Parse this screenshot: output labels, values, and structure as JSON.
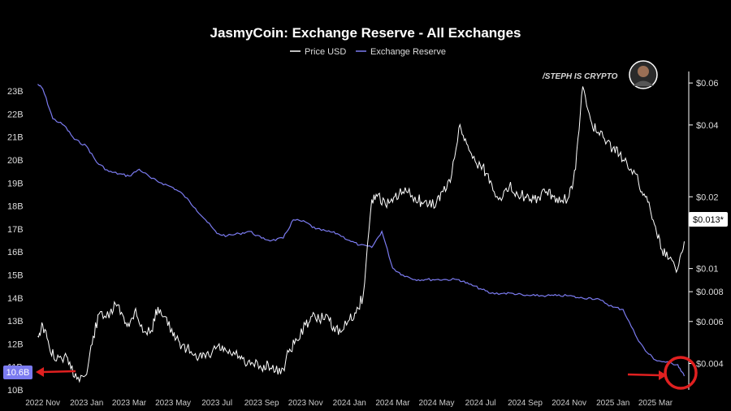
{
  "chart_data": {
    "type": "line",
    "title": "JasmyCoin: Exchange Reserve - All Exchanges",
    "legend": {
      "placement": "top-center",
      "items": [
        {
          "name": "Price USD",
          "color": "#ffffff"
        },
        {
          "name": "Exchange Reserve",
          "color": "#7b7bf0"
        }
      ]
    },
    "x_ticks": [
      "2022 Nov",
      "2023 Jan",
      "2023 Mar",
      "2023 May",
      "2023 Jul",
      "2023 Sep",
      "2023 Nov",
      "2024 Jan",
      "2024 Mar",
      "2024 May",
      "2024 Jul",
      "2024 Sep",
      "2024 Nov",
      "2025 Jan",
      "2025 Mar"
    ],
    "left_axis": {
      "unit": "billions",
      "ylim": [
        10,
        23.5
      ],
      "ticks": [
        "10B",
        "11B",
        "12B",
        "13B",
        "14B",
        "15B",
        "16B",
        "17B",
        "18B",
        "19B",
        "20B",
        "21B",
        "22B",
        "23B"
      ],
      "tick_values": [
        10,
        11,
        12,
        13,
        14,
        15,
        16,
        17,
        18,
        19,
        20,
        21,
        22,
        23
      ]
    },
    "right_axis": {
      "scale": "log",
      "ticks": [
        "$0.004",
        "$0.006",
        "$0.008",
        "$0.01",
        "$0.02",
        "$0.04",
        "$0.06"
      ],
      "tick_values": [
        0.004,
        0.006,
        0.008,
        0.01,
        0.02,
        0.04,
        0.06
      ]
    },
    "current_labels": {
      "reserve": "10.6B",
      "price": "$0.013*"
    },
    "watermark": "/STEPH IS CRYPTO",
    "series": [
      {
        "name": "Exchange Reserve",
        "axis": "left",
        "color": "#7b7bf0",
        "x": [
          "2022-10-25",
          "2022-11-01",
          "2022-11-15",
          "2022-12-01",
          "2022-12-15",
          "2023-01-01",
          "2023-01-15",
          "2023-02-01",
          "2023-02-15",
          "2023-03-01",
          "2023-03-15",
          "2023-04-01",
          "2023-04-15",
          "2023-05-01",
          "2023-05-15",
          "2023-06-01",
          "2023-06-15",
          "2023-07-01",
          "2023-07-15",
          "2023-08-01",
          "2023-08-15",
          "2023-09-01",
          "2023-09-15",
          "2023-10-01",
          "2023-10-15",
          "2023-11-01",
          "2023-11-15",
          "2023-12-01",
          "2023-12-15",
          "2024-01-01",
          "2024-01-15",
          "2024-02-01",
          "2024-02-15",
          "2024-03-01",
          "2024-03-15",
          "2024-04-01",
          "2024-04-15",
          "2024-05-01",
          "2024-05-15",
          "2024-06-01",
          "2024-06-15",
          "2024-07-01",
          "2024-07-15",
          "2024-08-01",
          "2024-08-15",
          "2024-09-01",
          "2024-09-15",
          "2024-10-01",
          "2024-10-15",
          "2024-11-01",
          "2024-11-15",
          "2024-12-01",
          "2024-12-15",
          "2025-01-01",
          "2025-01-15",
          "2025-02-01",
          "2025-02-15",
          "2025-03-01",
          "2025-03-15",
          "2025-04-01",
          "2025-04-10"
        ],
        "values": [
          23.3,
          23.1,
          21.8,
          21.5,
          20.9,
          20.6,
          19.9,
          19.5,
          19.4,
          19.3,
          19.6,
          19.2,
          19.0,
          18.8,
          18.5,
          17.9,
          17.4,
          16.8,
          16.7,
          16.8,
          16.9,
          16.6,
          16.5,
          16.6,
          17.4,
          17.3,
          17.0,
          16.9,
          16.8,
          16.5,
          16.3,
          16.2,
          16.9,
          15.3,
          15.0,
          14.8,
          14.8,
          14.8,
          14.8,
          14.8,
          14.6,
          14.4,
          14.2,
          14.2,
          14.2,
          14.1,
          14.1,
          14.1,
          14.1,
          14.1,
          14.0,
          14.0,
          13.9,
          13.6,
          13.5,
          12.4,
          11.7,
          11.3,
          11.2,
          11.1,
          10.6
        ]
      },
      {
        "name": "Price USD",
        "axis": "right",
        "color": "#ffffff",
        "x": [
          "2022-10-25",
          "2022-11-01",
          "2022-11-10",
          "2022-11-20",
          "2022-12-01",
          "2022-12-10",
          "2022-12-20",
          "2023-01-01",
          "2023-01-10",
          "2023-01-20",
          "2023-02-01",
          "2023-02-10",
          "2023-02-20",
          "2023-03-01",
          "2023-03-10",
          "2023-03-20",
          "2023-04-01",
          "2023-04-10",
          "2023-04-20",
          "2023-05-01",
          "2023-05-10",
          "2023-05-20",
          "2023-06-01",
          "2023-06-10",
          "2023-06-20",
          "2023-07-01",
          "2023-07-10",
          "2023-07-20",
          "2023-08-01",
          "2023-08-10",
          "2023-08-20",
          "2023-09-01",
          "2023-09-10",
          "2023-09-20",
          "2023-10-01",
          "2023-10-10",
          "2023-10-20",
          "2023-11-01",
          "2023-11-10",
          "2023-11-20",
          "2023-12-01",
          "2023-12-10",
          "2023-12-20",
          "2024-01-01",
          "2024-01-10",
          "2024-01-20",
          "2024-02-01",
          "2024-02-10",
          "2024-02-20",
          "2024-03-01",
          "2024-03-10",
          "2024-03-20",
          "2024-04-01",
          "2024-04-10",
          "2024-04-20",
          "2024-05-01",
          "2024-05-10",
          "2024-05-20",
          "2024-06-01",
          "2024-06-10",
          "2024-06-20",
          "2024-07-01",
          "2024-07-10",
          "2024-07-20",
          "2024-08-01",
          "2024-08-10",
          "2024-08-20",
          "2024-09-01",
          "2024-09-10",
          "2024-09-20",
          "2024-10-01",
          "2024-10-10",
          "2024-10-20",
          "2024-11-01",
          "2024-11-10",
          "2024-11-20",
          "2024-12-01",
          "2024-12-10",
          "2024-12-20",
          "2025-01-01",
          "2025-01-10",
          "2025-01-20",
          "2025-02-01",
          "2025-02-10",
          "2025-02-20",
          "2025-03-01",
          "2025-03-10",
          "2025-03-20",
          "2025-04-01",
          "2025-04-10"
        ],
        "values": [
          0.0052,
          0.0058,
          0.0047,
          0.0041,
          0.0043,
          0.0038,
          0.0035,
          0.0036,
          0.0052,
          0.0066,
          0.0062,
          0.0071,
          0.0064,
          0.0057,
          0.0068,
          0.0054,
          0.0055,
          0.0069,
          0.0063,
          0.0052,
          0.0049,
          0.0046,
          0.0044,
          0.0042,
          0.0043,
          0.0047,
          0.0045,
          0.0044,
          0.0043,
          0.0039,
          0.004,
          0.0038,
          0.004,
          0.0037,
          0.0038,
          0.0046,
          0.005,
          0.0058,
          0.0063,
          0.0061,
          0.0064,
          0.0057,
          0.0054,
          0.0061,
          0.0065,
          0.0077,
          0.0195,
          0.0205,
          0.0185,
          0.019,
          0.0205,
          0.021,
          0.02,
          0.019,
          0.0185,
          0.019,
          0.021,
          0.023,
          0.039,
          0.035,
          0.029,
          0.027,
          0.025,
          0.021,
          0.02,
          0.022,
          0.021,
          0.02,
          0.019,
          0.02,
          0.021,
          0.02,
          0.019,
          0.02,
          0.026,
          0.058,
          0.042,
          0.037,
          0.035,
          0.032,
          0.03,
          0.028,
          0.025,
          0.021,
          0.019,
          0.015,
          0.012,
          0.011,
          0.01,
          0.013
        ]
      }
    ]
  }
}
